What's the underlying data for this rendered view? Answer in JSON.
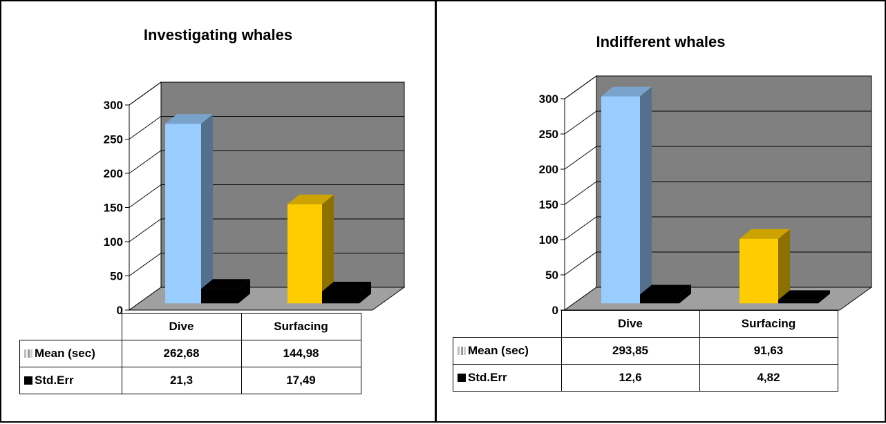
{
  "chart_data": [
    {
      "type": "bar",
      "title": "Investigating whales",
      "categories": [
        "Dive",
        "Surfacing"
      ],
      "series": [
        {
          "name": "Mean (sec)",
          "values": [
            262.68,
            144.98
          ],
          "labels": [
            "262,68",
            "144,98"
          ]
        },
        {
          "name": "Std.Err",
          "values": [
            21.3,
            17.49
          ],
          "labels": [
            "21,3",
            "17,49"
          ]
        }
      ],
      "yticks": [
        "0",
        "50",
        "100",
        "150",
        "200",
        "250",
        "300"
      ],
      "ylim": [
        0,
        300
      ],
      "grid": true,
      "legend": "data-table-below",
      "colors": {
        "Dive": "#99ccff",
        "Surfacing": "#ffcc00",
        "Std.Err": "#000000",
        "wall": "#808080"
      }
    },
    {
      "type": "bar",
      "title": "Indifferent whales",
      "categories": [
        "Dive",
        "Surfacing"
      ],
      "series": [
        {
          "name": "Mean (sec)",
          "values": [
            293.85,
            91.63
          ],
          "labels": [
            "293,85",
            "91,63"
          ]
        },
        {
          "name": "Std.Err",
          "values": [
            12.6,
            4.82
          ],
          "labels": [
            "12,6",
            "4,82"
          ]
        }
      ],
      "yticks": [
        "0",
        "50",
        "100",
        "150",
        "200",
        "250",
        "300"
      ],
      "ylim": [
        0,
        300
      ],
      "grid": true,
      "legend": "data-table-below",
      "colors": {
        "Dive": "#99ccff",
        "Surfacing": "#ffcc00",
        "Std.Err": "#000000",
        "wall": "#808080"
      }
    }
  ]
}
